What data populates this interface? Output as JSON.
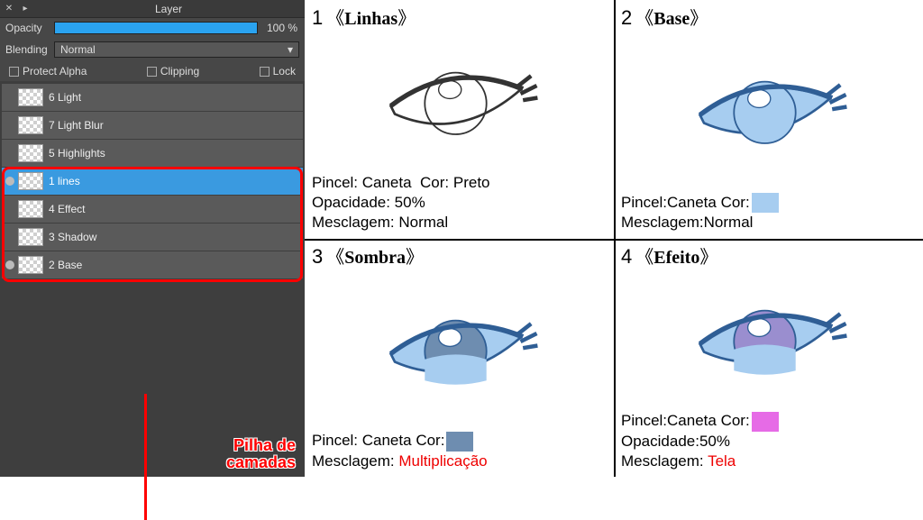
{
  "panel": {
    "title": "Layer",
    "opacity_label": "Opacity",
    "opacity_value": "100 %",
    "blending_label": "Blending",
    "blending_value": "Normal",
    "protect_alpha": "Protect Alpha",
    "clipping": "Clipping",
    "lock": "Lock",
    "layers": [
      {
        "name": "6 Light",
        "selected": false,
        "dot": false
      },
      {
        "name": "7 Light Blur",
        "selected": false,
        "dot": false
      },
      {
        "name": "5 Highlights",
        "selected": false,
        "dot": false
      },
      {
        "name": "1 lines",
        "selected": true,
        "dot": true
      },
      {
        "name": "4 Effect",
        "selected": false,
        "dot": false
      },
      {
        "name": "3 Shadow",
        "selected": false,
        "dot": false
      },
      {
        "name": "2 Base",
        "selected": false,
        "dot": true
      }
    ],
    "stack_label_line1": "Pilha de",
    "stack_label_line2": "camadas"
  },
  "steps": {
    "s1": {
      "num": "1",
      "bracket_l": "《",
      "name": "Linhas",
      "bracket_r": "》",
      "line1_a": "Pincel: Caneta",
      "line1_b": "Cor: Preto",
      "line2": "Opacidade: 50%",
      "line3_a": "Mesclagem:",
      "line3_b": "Normal",
      "eye_fill": "none",
      "eye_stroke": "#333",
      "iris_fill": "none",
      "inner_fill": "none"
    },
    "s2": {
      "num": "2",
      "bracket_l": "《",
      "name": "Base",
      "bracket_r": "》",
      "line1_a": "Pincel:Caneta",
      "line1_b": "Cor:",
      "swatch": "#a7cdf0",
      "line3_a": "Mesclagem:",
      "line3_b": "Normal",
      "eye_fill": "#a7cdf0",
      "eye_stroke": "#2f5e95",
      "iris_fill": "#a7cdf0",
      "inner_fill": "none"
    },
    "s3": {
      "num": "3",
      "bracket_l": "《",
      "name": "Sombra",
      "bracket_r": "》",
      "line1_a": "Pincel: Caneta",
      "line1_b": "Cor:",
      "swatch": "#6e8db0",
      "line3_a": "Mesclagem:",
      "line3_b": "Multiplicação",
      "line3_red": true,
      "eye_fill": "#a7cdf0",
      "eye_stroke": "#2f5e95",
      "iris_fill": "#6e8db0",
      "inner_fill": "#a7cdf0"
    },
    "s4": {
      "num": "4",
      "bracket_l": "《",
      "name": "Efeito",
      "bracket_r": "》",
      "line1_a": "Pincel:Caneta",
      "line1_b": "Cor:",
      "swatch": "#e66be6",
      "line2": "Opacidade:50%",
      "line3_a": "Mesclagem:",
      "line3_b": "Tela",
      "line3_red": true,
      "eye_fill": "#a7cdf0",
      "eye_stroke": "#2f5e95",
      "iris_fill": "#9a8ecf",
      "inner_fill": "#a7cdf0"
    }
  }
}
